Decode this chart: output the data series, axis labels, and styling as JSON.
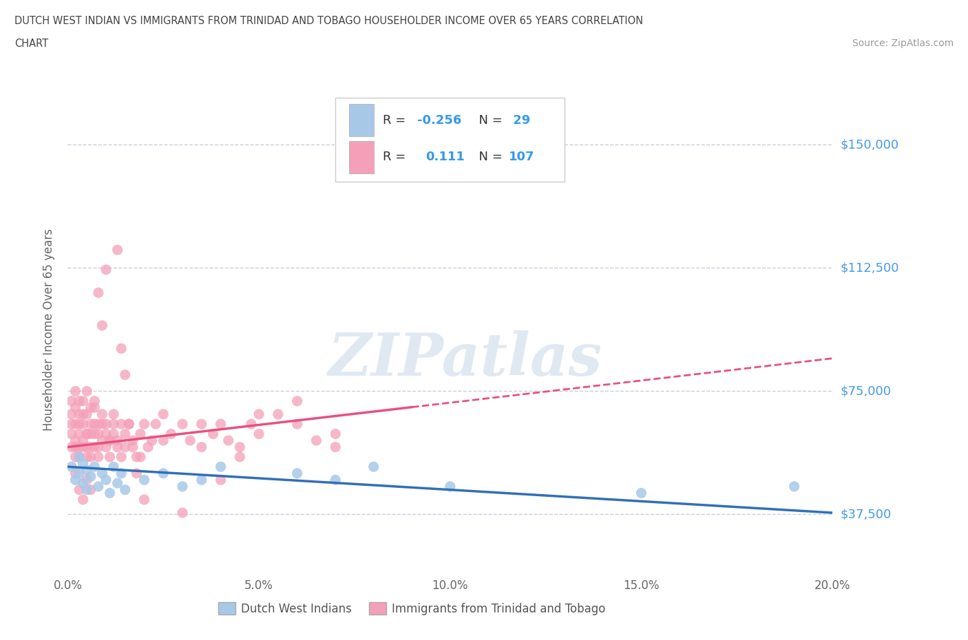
{
  "title_line1": "DUTCH WEST INDIAN VS IMMIGRANTS FROM TRINIDAD AND TOBAGO HOUSEHOLDER INCOME OVER 65 YEARS CORRELATION",
  "title_line2": "CHART",
  "source_text": "Source: ZipAtlas.com",
  "watermark": "ZIPatlas",
  "ylabel": "Householder Income Over 65 years",
  "xlim": [
    0.0,
    0.2
  ],
  "ylim": [
    18750,
    168750
  ],
  "yticks": [
    37500,
    75000,
    112500,
    150000
  ],
  "ytick_labels": [
    "$37,500",
    "$75,000",
    "$112,500",
    "$150,000"
  ],
  "xticks": [
    0.0,
    0.05,
    0.1,
    0.15,
    0.2
  ],
  "xtick_labels": [
    "0.0%",
    "5.0%",
    "10.0%",
    "15.0%",
    "20.0%"
  ],
  "blue_color": "#a8c8e8",
  "pink_color": "#f4a0b8",
  "blue_line_color": "#3070b8",
  "pink_line_color": "#e85080",
  "grid_color": "#c8d0dc",
  "R_blue": -0.256,
  "N_blue": 29,
  "R_pink": 0.111,
  "N_pink": 107,
  "blue_scatter_x": [
    0.001,
    0.002,
    0.003,
    0.003,
    0.004,
    0.004,
    0.005,
    0.005,
    0.006,
    0.007,
    0.008,
    0.009,
    0.01,
    0.011,
    0.012,
    0.013,
    0.014,
    0.015,
    0.02,
    0.025,
    0.03,
    0.035,
    0.04,
    0.06,
    0.07,
    0.08,
    0.1,
    0.15,
    0.19
  ],
  "blue_scatter_y": [
    52000,
    48000,
    50000,
    55000,
    47000,
    53000,
    51000,
    45000,
    49000,
    52000,
    46000,
    50000,
    48000,
    44000,
    52000,
    47000,
    50000,
    45000,
    48000,
    50000,
    46000,
    48000,
    52000,
    50000,
    48000,
    52000,
    46000,
    44000,
    46000
  ],
  "pink_scatter_x": [
    0.001,
    0.001,
    0.001,
    0.001,
    0.001,
    0.002,
    0.002,
    0.002,
    0.002,
    0.002,
    0.002,
    0.003,
    0.003,
    0.003,
    0.003,
    0.003,
    0.003,
    0.004,
    0.004,
    0.004,
    0.004,
    0.004,
    0.005,
    0.005,
    0.005,
    0.005,
    0.005,
    0.005,
    0.006,
    0.006,
    0.006,
    0.006,
    0.006,
    0.007,
    0.007,
    0.007,
    0.007,
    0.008,
    0.008,
    0.008,
    0.008,
    0.009,
    0.009,
    0.009,
    0.01,
    0.01,
    0.01,
    0.011,
    0.011,
    0.012,
    0.012,
    0.013,
    0.013,
    0.014,
    0.014,
    0.015,
    0.015,
    0.016,
    0.017,
    0.018,
    0.019,
    0.02,
    0.021,
    0.022,
    0.023,
    0.025,
    0.027,
    0.03,
    0.032,
    0.035,
    0.038,
    0.04,
    0.042,
    0.045,
    0.048,
    0.05,
    0.055,
    0.06,
    0.065,
    0.07,
    0.002,
    0.003,
    0.004,
    0.005,
    0.006,
    0.007,
    0.008,
    0.009,
    0.01,
    0.011,
    0.012,
    0.013,
    0.014,
    0.015,
    0.016,
    0.017,
    0.018,
    0.019,
    0.02,
    0.025,
    0.03,
    0.035,
    0.04,
    0.045,
    0.05,
    0.06,
    0.07
  ],
  "pink_scatter_y": [
    62000,
    68000,
    58000,
    72000,
    65000,
    60000,
    58000,
    65000,
    70000,
    55000,
    75000,
    62000,
    68000,
    58000,
    65000,
    72000,
    55000,
    60000,
    68000,
    58000,
    65000,
    72000,
    62000,
    58000,
    68000,
    55000,
    75000,
    62000,
    65000,
    58000,
    70000,
    62000,
    55000,
    65000,
    62000,
    58000,
    70000,
    65000,
    58000,
    62000,
    55000,
    68000,
    60000,
    65000,
    62000,
    58000,
    65000,
    60000,
    55000,
    62000,
    68000,
    60000,
    58000,
    65000,
    55000,
    62000,
    58000,
    65000,
    60000,
    55000,
    62000,
    65000,
    58000,
    60000,
    65000,
    68000,
    62000,
    65000,
    60000,
    58000,
    62000,
    65000,
    60000,
    58000,
    65000,
    62000,
    68000,
    65000,
    60000,
    62000,
    50000,
    45000,
    42000,
    48000,
    45000,
    72000,
    105000,
    95000,
    112000,
    60000,
    65000,
    118000,
    88000,
    80000,
    65000,
    58000,
    50000,
    55000,
    42000,
    60000,
    38000,
    65000,
    48000,
    55000,
    68000,
    72000,
    58000
  ]
}
